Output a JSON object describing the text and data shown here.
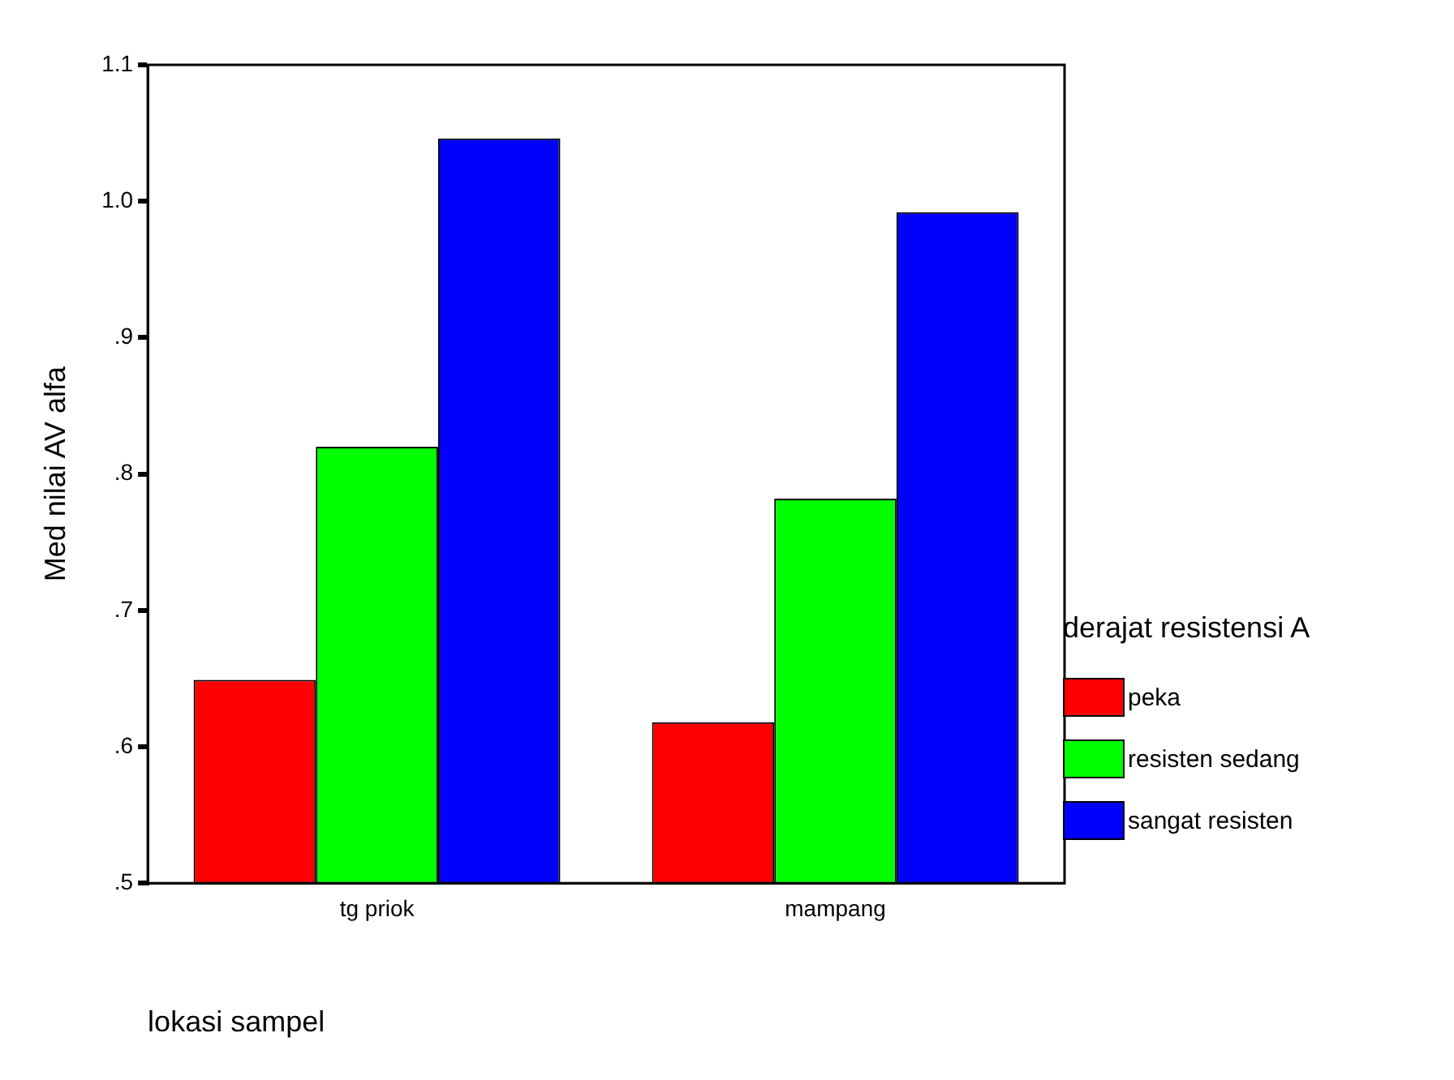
{
  "chart_data": {
    "type": "bar",
    "categories": [
      "tg priok",
      "mampang"
    ],
    "xlabel": "lokasi sampel",
    "ylabel": "Med nilai AV alfa",
    "legend_title": "derajat resistensi A",
    "legend": "right",
    "grid": false,
    "ylim": [
      0.5,
      1.1
    ],
    "yticks": [
      {
        "value": 0.5,
        "label": ".5"
      },
      {
        "value": 0.6,
        "label": ".6"
      },
      {
        "value": 0.7,
        "label": ".7"
      },
      {
        "value": 0.8,
        "label": ".8"
      },
      {
        "value": 0.9,
        "label": ".9"
      },
      {
        "value": 1.0,
        "label": "1.0"
      },
      {
        "value": 1.1,
        "label": "1.1"
      }
    ],
    "series": [
      {
        "name": "peka",
        "color": "#ff0000",
        "values": [
          0.649,
          0.618
        ]
      },
      {
        "name": "resisten sedang",
        "color": "#00ff00",
        "values": [
          0.82,
          0.782
        ]
      },
      {
        "name": "sangat resisten",
        "color": "#0000ff",
        "values": [
          1.046,
          0.992
        ]
      }
    ]
  }
}
